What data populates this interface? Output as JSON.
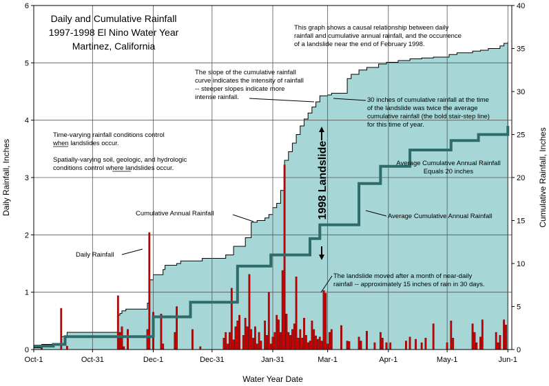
{
  "chart_data": {
    "type": "bar",
    "title_lines": [
      "Daily and Cumulative Rainfall",
      "1997-1998 El Nino Water Year",
      "Martinez, California"
    ],
    "xlabel": "Water Year Date",
    "ylabel_left": "Daily Rainfall, Inches",
    "ylabel_right": "Cumulative Rainfall, Inches",
    "xlim_days": [
      0,
      244
    ],
    "ylim_left": [
      0,
      6
    ],
    "ylim_right": [
      0,
      40
    ],
    "yticks_left": [
      "0",
      "1",
      "2",
      "3",
      "4",
      "5",
      "6"
    ],
    "yticks_right": [
      "0",
      "5",
      "10",
      "15",
      "20",
      "25",
      "30",
      "35",
      "40"
    ],
    "xticks": [
      {
        "day": 0,
        "label": "Oct-1"
      },
      {
        "day": 30,
        "label": "Oct-31"
      },
      {
        "day": 61,
        "label": "Dec-1"
      },
      {
        "day": 91,
        "label": "Dec-31"
      },
      {
        "day": 122,
        "label": "Jan-31"
      },
      {
        "day": 150,
        "label": "Mar-1"
      },
      {
        "day": 181,
        "label": "Apr-1"
      },
      {
        "day": 211,
        "label": "May-1"
      },
      {
        "day": 242,
        "label": "Jun-1"
      }
    ],
    "series": [
      {
        "name": "Daily Rainfall",
        "color": "#cc0000",
        "days": [
          4,
          14,
          17,
          43,
          44,
          45,
          46,
          48,
          58,
          59,
          61,
          65,
          66,
          72,
          73,
          81,
          85,
          97,
          98,
          99,
          100,
          101,
          102,
          103,
          104,
          105,
          107,
          108,
          109,
          110,
          111,
          112,
          113,
          114,
          115,
          116,
          118,
          119,
          120,
          121,
          122,
          123,
          124,
          125,
          126,
          127,
          128,
          129,
          130,
          131,
          132,
          133,
          134,
          135,
          136,
          137,
          138,
          139,
          140,
          141,
          142,
          143,
          144,
          145,
          146,
          147,
          148,
          149,
          150,
          151,
          152,
          157,
          160,
          161,
          166,
          167,
          170,
          174,
          177,
          178,
          180,
          182,
          190,
          192,
          195,
          198,
          200,
          204,
          211,
          213,
          214,
          224,
          225,
          226,
          228,
          229,
          236,
          237,
          238,
          240,
          241
        ],
        "values": [
          0.05,
          0.72,
          0.06,
          0.94,
          0.3,
          0.4,
          0.05,
          0.35,
          0.35,
          2.04,
          0.65,
          0.62,
          0.1,
          0.3,
          0.75,
          0.35,
          0.05,
          0.2,
          0.3,
          0.1,
          0.3,
          1.07,
          0.17,
          0.4,
          0.5,
          0.6,
          0.25,
          0.55,
          0.4,
          1.31,
          0.35,
          0.2,
          0.4,
          0.1,
          0.3,
          0.15,
          0.5,
          0.25,
          1.0,
          0.1,
          0.22,
          0.3,
          0.6,
          0.52,
          0.3,
          1.38,
          3.22,
          0.62,
          0.3,
          0.25,
          0.35,
          0.45,
          1.27,
          0.2,
          0.35,
          0.2,
          0.55,
          0.25,
          0.12,
          0.15,
          0.5,
          0.35,
          0.24,
          0.18,
          0.22,
          0.15,
          1.03,
          0.98,
          0.1,
          0.3,
          0.35,
          0.42,
          0.15,
          0.14,
          0.22,
          0.15,
          0.32,
          0.12,
          0.3,
          0.2,
          0.12,
          0.12,
          0.15,
          0.22,
          0.18,
          0.12,
          0.2,
          0.45,
          0.12,
          0.5,
          0.2,
          0.45,
          0.3,
          0.12,
          0.22,
          0.52,
          0.3,
          0.12,
          0.25,
          0.52,
          0.43
        ]
      },
      {
        "name": "Cumulative Annual Rainfall",
        "color": "#a6d6d6",
        "days": [
          0,
          4,
          14,
          17,
          43,
          44,
          45,
          47,
          58,
          59,
          61,
          66,
          67,
          73,
          75,
          86,
          98,
          102,
          108,
          111,
          114,
          118,
          120,
          122,
          124,
          126,
          128,
          130,
          132,
          134,
          136,
          138,
          140,
          142,
          144,
          146,
          150,
          152,
          160,
          162,
          166,
          170,
          176,
          180,
          186,
          192,
          198,
          204,
          212,
          216,
          224,
          228,
          232,
          238,
          240,
          242
        ],
        "values": [
          0.2,
          0.6,
          1.5,
          2.0,
          4.0,
          4.2,
          4.5,
          4.7,
          5.4,
          8.1,
          8.7,
          9.3,
          9.8,
          10.0,
          10.3,
          10.6,
          11.0,
          12.0,
          13.0,
          14.8,
          15.0,
          15.3,
          15.7,
          16.5,
          17.0,
          18.5,
          22.0,
          23.0,
          24.0,
          25.0,
          26.0,
          26.8,
          27.5,
          28.2,
          28.8,
          29.5,
          29.6,
          29.8,
          31.5,
          32.0,
          32.5,
          32.8,
          33.2,
          33.4,
          33.6,
          33.8,
          33.9,
          34.0,
          34.3,
          34.5,
          34.7,
          34.8,
          35.0,
          35.3,
          35.6,
          35.8
        ]
      },
      {
        "name": "Average Cumulative Annual Rainfall",
        "color": "#2e6b6b",
        "days": [
          0,
          10,
          16,
          43,
          61,
          80,
          104,
          121,
          141,
          146,
          166,
          177,
          192,
          213,
          227,
          242
        ],
        "values": [
          0.4,
          0.6,
          1.5,
          1.5,
          3.8,
          5.5,
          9.7,
          11.0,
          12.9,
          14.5,
          19.3,
          21.3,
          23.2,
          24.3,
          25.0,
          26.0
        ]
      }
    ],
    "annotations": {
      "intro_lines": [
        "This graph shows a causal relationship between daily",
        "rainfall and cumulative annual rainfall, and the occurrence",
        "of a landslide near the end of February 1998."
      ],
      "slope_lines": [
        "The slope of the cumulative rainfall",
        "curve indicates the intensity of rainfall",
        "-- steeper slopes indicate more",
        "intense rainfall."
      ],
      "thirty_lines": [
        "30 inches of cumulative rainfall at the time",
        "of the landslide was twice the average",
        "cumulative rainfall (the bold stair-step line)",
        "for this time of year."
      ],
      "time_lines": [
        "Time-varying rainfall conditions control",
        "when landslides occur."
      ],
      "space_lines": [
        "Spatially-varying soil, geologic, and hydrologic",
        "conditions control where landslides occur."
      ],
      "landslide_label": "1998 Landslide",
      "avg_eq_lines": [
        "Average Cumulative Annual Rainfall",
        "Equals 20 inches"
      ],
      "cum_label": "Cumulative Annual Rainfall",
      "avg_label": "Average Cumulative Annual Rainfall",
      "daily_label": "Daily Rainfall",
      "moved_lines": [
        "The landslide moved after a month of near-daily",
        "rainfall -- approximately 15 inches of rain in 30 days."
      ]
    }
  }
}
